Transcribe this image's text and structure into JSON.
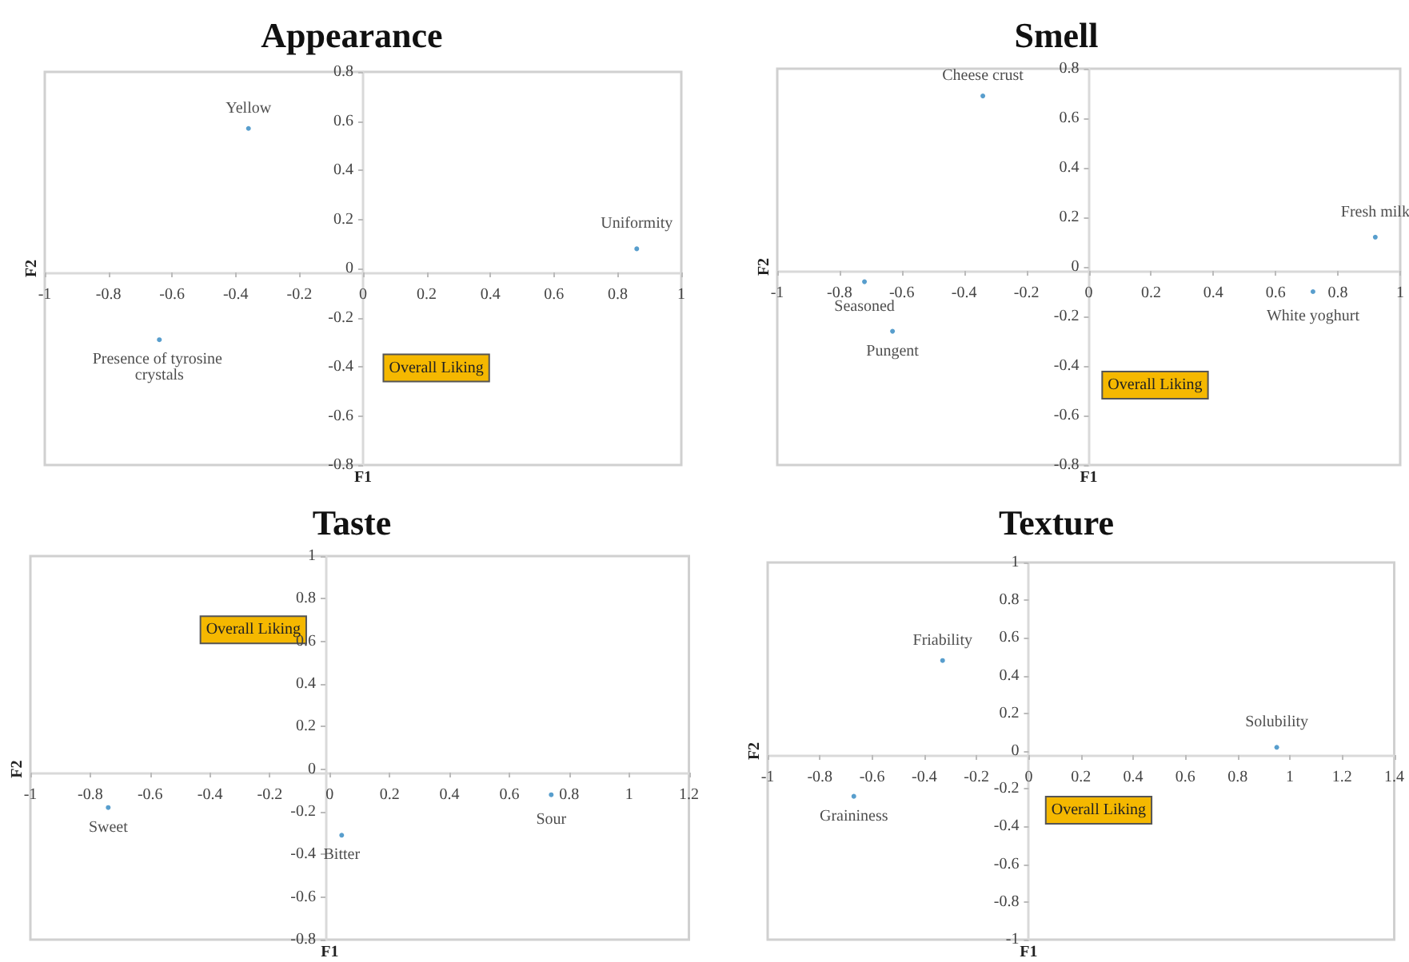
{
  "chart_data": [
    {
      "type": "scatter",
      "title": "Appearance",
      "xlabel": "F1",
      "ylabel": "F2",
      "xlim": [
        -1,
        1
      ],
      "xticks": [
        -1,
        -0.8,
        -0.6,
        -0.4,
        -0.2,
        0,
        0.2,
        0.4,
        0.6,
        0.8,
        1
      ],
      "ylim": [
        -0.8,
        0.8
      ],
      "yticks": [
        -0.8,
        -0.6,
        -0.4,
        -0.2,
        0,
        0.2,
        0.4,
        0.6,
        0.8
      ],
      "grid": false,
      "marker": "circle",
      "annotations": [
        "Overall Liking"
      ],
      "series": [
        {
          "name": "Yellow",
          "color": "#2e86c1",
          "x": [
            -0.36
          ],
          "values": [
            0.57
          ]
        },
        {
          "name": "Uniformity",
          "color": "#2e86c1",
          "x": [
            0.86
          ],
          "values": [
            0.08
          ]
        },
        {
          "name": "Presence of tyrosine crystals",
          "color": "#2e86c1",
          "x": [
            -0.64
          ],
          "values": [
            -0.29
          ]
        }
      ]
    },
    {
      "type": "scatter",
      "title": "Smell",
      "xlabel": "F1",
      "ylabel": "F2",
      "xlim": [
        -1,
        1
      ],
      "xticks": [
        -1,
        -0.8,
        -0.6,
        -0.4,
        -0.2,
        0,
        0.2,
        0.4,
        0.6,
        0.8,
        1
      ],
      "ylim": [
        -0.8,
        0.8
      ],
      "yticks": [
        -0.8,
        -0.6,
        -0.4,
        -0.2,
        0,
        0.2,
        0.4,
        0.6,
        0.8
      ],
      "grid": false,
      "marker": "circle",
      "annotations": [
        "Overall Liking"
      ],
      "series": [
        {
          "name": "Cheese crust",
          "color": "#2e86c1",
          "x": [
            -0.34
          ],
          "values": [
            0.69
          ]
        },
        {
          "name": "Fresh milk",
          "color": "#2e86c1",
          "x": [
            0.92
          ],
          "values": [
            0.12
          ]
        },
        {
          "name": "White yoghurt",
          "color": "#2e86c1",
          "x": [
            0.72
          ],
          "values": [
            -0.1
          ]
        },
        {
          "name": "Seasoned",
          "color": "#2e86c1",
          "x": [
            -0.72
          ],
          "values": [
            -0.06
          ]
        },
        {
          "name": "Pungent",
          "color": "#2e86c1",
          "x": [
            -0.63
          ],
          "values": [
            -0.26
          ]
        }
      ]
    },
    {
      "type": "scatter",
      "title": "Taste",
      "xlabel": "F1",
      "ylabel": "F2",
      "xlim": [
        -1,
        1.2
      ],
      "xticks": [
        -1,
        -0.8,
        -0.6,
        -0.4,
        -0.2,
        0,
        0.2,
        0.4,
        0.6,
        0.8,
        1,
        1.2
      ],
      "ylim": [
        -0.8,
        1
      ],
      "yticks": [
        -0.8,
        -0.6,
        -0.4,
        -0.2,
        0,
        0.2,
        0.4,
        0.6,
        0.8,
        1
      ],
      "grid": false,
      "marker": "circle",
      "annotations": [
        "Overall Liking"
      ],
      "series": [
        {
          "name": "Sweet",
          "color": "#2e86c1",
          "x": [
            -0.74
          ],
          "values": [
            -0.18
          ]
        },
        {
          "name": "Bitter",
          "color": "#2e86c1",
          "x": [
            0.04
          ],
          "values": [
            -0.31
          ]
        },
        {
          "name": "Sour",
          "color": "#2e86c1",
          "x": [
            0.74
          ],
          "values": [
            -0.12
          ]
        }
      ]
    },
    {
      "type": "scatter",
      "title": "Texture",
      "xlabel": "F1",
      "ylabel": "F2",
      "xlim": [
        -1,
        1.4
      ],
      "xticks": [
        -1,
        -0.8,
        -0.6,
        -0.4,
        -0.2,
        0,
        0.2,
        0.4,
        0.6,
        0.8,
        1,
        1.2,
        1.4
      ],
      "ylim": [
        -1,
        1
      ],
      "yticks": [
        -1,
        -0.8,
        -0.6,
        -0.4,
        -0.2,
        0,
        0.2,
        0.4,
        0.6,
        0.8,
        1
      ],
      "grid": false,
      "marker": "circle",
      "annotations": [
        "Overall Liking"
      ],
      "series": [
        {
          "name": "Friability",
          "color": "#2e86c1",
          "x": [
            -0.33
          ],
          "values": [
            0.48
          ]
        },
        {
          "name": "Solubility",
          "color": "#2e86c1",
          "x": [
            0.95
          ],
          "values": [
            0.02
          ]
        },
        {
          "name": "Graininess",
          "color": "#2e86c1",
          "x": [
            -0.67
          ],
          "values": [
            -0.24
          ]
        }
      ]
    }
  ]
}
